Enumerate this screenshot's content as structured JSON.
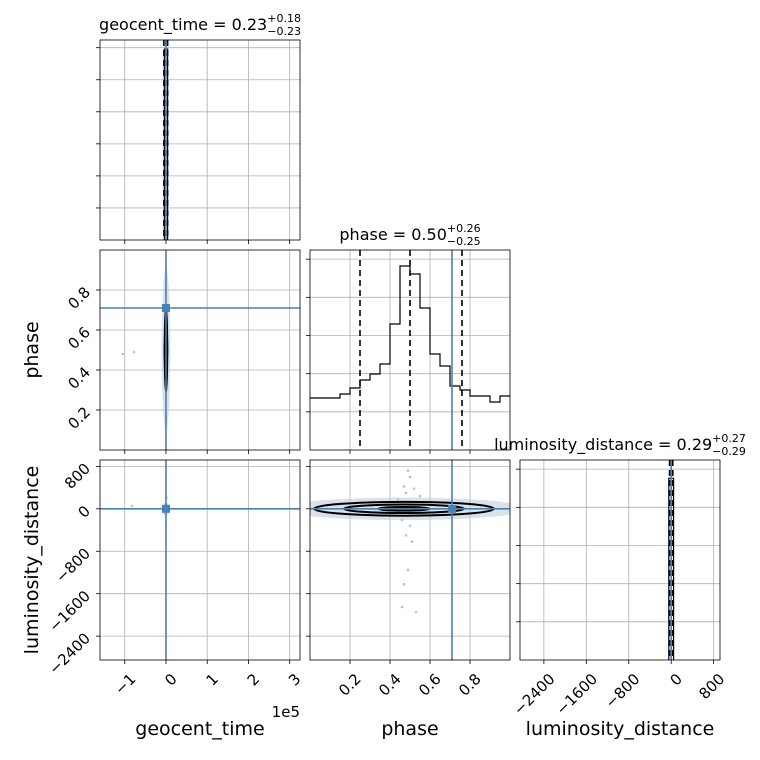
{
  "chart_data": {
    "type": "corner",
    "parameters": [
      "geocent_time",
      "phase",
      "luminosity_distance"
    ],
    "truth": {
      "geocent_time": 0,
      "phase": 0.71,
      "luminosity_distance": 0
    },
    "marginals": [
      {
        "param": "geocent_time",
        "title_name": "geocent_time",
        "median": "0.23",
        "plus": "+0.18",
        "minus": "−0.23",
        "xlim": [
          -160000,
          325000
        ],
        "quantiles": [
          -5000,
          0,
          4000
        ],
        "hist_bins": [
          -4000,
          4000
        ],
        "hist_counts": [
          1.0
        ],
        "ylim": [
          0,
          1.0476
        ],
        "ytick_count": 6,
        "grid": true
      },
      {
        "param": "phase",
        "title_name": "phase",
        "median": "0.50",
        "plus": "+0.26",
        "minus": "−0.25",
        "xlim": [
          0,
          1
        ],
        "quantiles": [
          0.25,
          0.5,
          0.76
        ],
        "hist_bins": [
          0,
          0.05,
          0.1,
          0.15,
          0.2,
          0.25,
          0.3,
          0.35,
          0.4,
          0.45,
          0.5,
          0.55,
          0.6,
          0.65,
          0.7,
          0.75,
          0.8,
          0.85,
          0.9,
          0.95,
          1.0
        ],
        "hist_counts": [
          0.26,
          0.26,
          0.26,
          0.28,
          0.31,
          0.35,
          0.38,
          0.43,
          0.63,
          0.92,
          0.88,
          0.71,
          0.48,
          0.42,
          0.32,
          0.3,
          0.27,
          0.27,
          0.24,
          0.27
        ],
        "ylim": [
          0,
          1.0
        ],
        "ytick_count": 5,
        "grid": true
      },
      {
        "param": "luminosity_distance",
        "title_name": "luminosity_distance",
        "median": "0.29",
        "plus": "+0.27",
        "minus": "−0.29",
        "xlim": [
          -2850,
          920
        ],
        "quantiles": [
          -30,
          0,
          30
        ],
        "hist_bins": [
          -45,
          45
        ],
        "hist_counts": [
          1.0
        ],
        "ylim": [
          0,
          1.1
        ],
        "ytick_count": 5,
        "grid": true
      }
    ],
    "panels": [
      {
        "x": "geocent_time",
        "y": "phase",
        "xlim": [
          -160000,
          325000
        ],
        "ylim": [
          0,
          1
        ],
        "yticks": [
          0.2,
          0.4,
          0.6,
          0.8
        ],
        "ytick_labels": [
          "0.2",
          "0.4",
          "0.6",
          "0.8"
        ],
        "contours": [
          {
            "cx": 0,
            "cy": 0.5,
            "rx": 3000,
            "ry": 0.21
          },
          {
            "cx": 0,
            "cy": 0.5,
            "rx": 2200,
            "ry": 0.13
          },
          {
            "cx": 0,
            "cy": 0.5,
            "rx": 1300,
            "ry": 0.06
          }
        ],
        "points": [
          [
            -105000,
            0.48
          ],
          [
            -78000,
            0.49
          ],
          [
            2000,
            0.3
          ],
          [
            -1500,
            0.62
          ]
        ]
      },
      {
        "x": "geocent_time",
        "y": "luminosity_distance",
        "xlim": [
          -160000,
          325000
        ],
        "ylim": [
          -2850,
          920
        ],
        "yticks": [
          -2400,
          -1600,
          -800,
          0,
          800
        ],
        "ytick_labels": [
          "−2400",
          "−1600",
          "−800",
          "0",
          "800"
        ],
        "contours": [
          {
            "cx": 0,
            "cy": 0,
            "rx": 1800,
            "ry": 45
          },
          {
            "cx": 0,
            "cy": 0,
            "rx": 1200,
            "ry": 30
          }
        ],
        "points": [
          [
            -82000,
            55
          ],
          [
            1000,
            210
          ],
          [
            -2000,
            -90
          ]
        ]
      },
      {
        "x": "phase",
        "y": "luminosity_distance",
        "xlim": [
          0,
          1
        ],
        "ylim": [
          -2850,
          920
        ],
        "yticks": [
          -2400,
          -1600,
          -800,
          0,
          800
        ],
        "ytick_labels": [
          "−2400",
          "−1600",
          "−800",
          "0",
          "800"
        ],
        "contours": [
          {
            "cx": 0.47,
            "cy": 0,
            "rx": 0.45,
            "ry": 130
          },
          {
            "cx": 0.47,
            "cy": 0,
            "rx": 0.3,
            "ry": 80
          },
          {
            "cx": 0.47,
            "cy": 0,
            "rx": 0.13,
            "ry": 35
          }
        ],
        "points": [
          [
            0.49,
            720
          ],
          [
            0.5,
            600
          ],
          [
            0.47,
            420
          ],
          [
            0.52,
            380
          ],
          [
            0.48,
            300
          ],
          [
            0.46,
            -210
          ],
          [
            0.5,
            -320
          ],
          [
            0.48,
            -500
          ],
          [
            0.51,
            -620
          ],
          [
            0.49,
            -1150
          ],
          [
            0.47,
            -1420
          ],
          [
            0.46,
            -1850
          ],
          [
            0.53,
            -1950
          ],
          [
            0.44,
            180
          ],
          [
            0.55,
            240
          ]
        ]
      }
    ],
    "x_axes": [
      {
        "param": "geocent_time",
        "label": "geocent_time",
        "ticks": [
          -100000,
          0,
          100000,
          200000,
          300000
        ],
        "tick_labels": [
          "−1",
          "0",
          "1",
          "2",
          "3"
        ],
        "offset_text": "1e5"
      },
      {
        "param": "phase",
        "label": "phase",
        "ticks": [
          0.2,
          0.4,
          0.6,
          0.8
        ],
        "tick_labels": [
          "0.2",
          "0.4",
          "0.6",
          "0.8"
        ]
      },
      {
        "param": "luminosity_distance",
        "label": "luminosity_distance",
        "ticks": [
          -2400,
          -1600,
          -800,
          0,
          800
        ],
        "tick_labels": [
          "−2400",
          "−1600",
          "−800",
          "0",
          "800"
        ]
      }
    ],
    "y_axis_labels": [
      "phase",
      "luminosity_distance"
    ],
    "colors": {
      "truth": "#4682b4",
      "hist": "#000000",
      "quantile": "#000000",
      "grid": "#b0b0b0",
      "contour": "#000000",
      "contour_fill": "#b9c8da",
      "points": "#c0c0c0"
    }
  }
}
